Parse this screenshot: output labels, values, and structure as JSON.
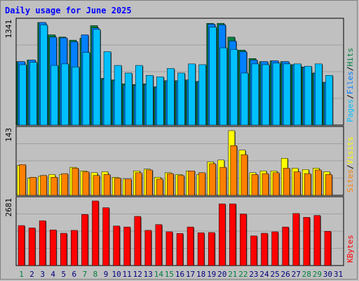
{
  "chart_data": {
    "type": "bar",
    "title": "Daily usage for June 2025",
    "colors": {
      "background": "#c0c0c0",
      "plot_background": "#c0c0c0",
      "pages": "#00c0ff",
      "files": "#0080ff",
      "hits": "#008040",
      "visits": "#ffff00",
      "sites": "#ff8000",
      "kbytes": "#ff0000",
      "weekend": "#008040",
      "weekday": "#000080"
    },
    "categories": [
      "1",
      "2",
      "3",
      "4",
      "5",
      "6",
      "7",
      "8",
      "9",
      "10",
      "11",
      "12",
      "13",
      "14",
      "15",
      "16",
      "17",
      "18",
      "19",
      "20",
      "21",
      "22",
      "23",
      "24",
      "25",
      "26",
      "27",
      "28",
      "29",
      "30",
      "31"
    ],
    "weekend_days": [
      "1",
      "7",
      "8",
      "14",
      "15",
      "21",
      "22",
      "28",
      "29"
    ],
    "panels": [
      {
        "id": "top",
        "max_label": "1341",
        "ymax": 1341,
        "legend": [
          {
            "text": "Hits",
            "color": "#008040"
          },
          {
            "text": "/",
            "color": "#000000"
          },
          {
            "text": "Files",
            "color": "#0080ff"
          },
          {
            "text": "/",
            "color": "#000000"
          },
          {
            "text": "Pages",
            "color": "#00c0ff"
          }
        ],
        "series": [
          {
            "name": "Hits",
            "color": "#008040",
            "values": [
              830,
              850,
              1341,
              1180,
              1150,
              1110,
              1135,
              1300,
              610,
              590,
              540,
              530,
              540,
              500,
              580,
              580,
              590,
              570,
              1330,
              1330,
              1150,
              980,
              870,
              830,
              840,
              830,
              790,
              760,
              680,
              560,
              0
            ]
          },
          {
            "name": "Files",
            "color": "#0080ff",
            "values": [
              830,
              850,
              1341,
              1150,
              1140,
              1090,
              1180,
              1270,
              600,
              580,
              520,
              520,
              530,
              500,
              580,
              580,
              590,
              570,
              1320,
              1310,
              1100,
              960,
              850,
              830,
              840,
              830,
              790,
              760,
              680,
              560,
              0
            ]
          },
          {
            "name": "Pages",
            "color": "#00c0ff",
            "values": [
              790,
              820,
              1310,
              780,
              800,
              760,
              950,
              1250,
              960,
              780,
              680,
              780,
              650,
              630,
              740,
              680,
              800,
              790,
              1280,
              1010,
              990,
              680,
              800,
              790,
              810,
              800,
              800,
              770,
              800,
              650,
              0
            ]
          }
        ]
      },
      {
        "id": "middle",
        "max_label": "143",
        "ymax": 143,
        "legend": [
          {
            "text": "Visits",
            "color": "#ffff00"
          },
          {
            "text": "/",
            "color": "#000000"
          },
          {
            "text": "Sites",
            "color": "#ff8000"
          }
        ],
        "series": [
          {
            "name": "Visits",
            "color": "#ffff00",
            "values": [
              66,
              38,
              42,
              46,
              46,
              62,
              54,
              50,
              52,
              40,
              36,
              54,
              58,
              40,
              50,
              46,
              54,
              46,
              74,
              78,
              143,
              100,
              50,
              54,
              54,
              82,
              60,
              57,
              60,
              52,
              0
            ]
          },
          {
            "name": "Sites",
            "color": "#ff8000",
            "values": [
              68,
              40,
              44,
              40,
              48,
              60,
              52,
              44,
              46,
              38,
              36,
              50,
              56,
              36,
              48,
              44,
              54,
              50,
              70,
              62,
              110,
              90,
              46,
              48,
              50,
              60,
              52,
              48,
              56,
              46,
              0
            ]
          }
        ]
      },
      {
        "id": "bottom",
        "max_label": "2681",
        "ymax": 2681,
        "legend": [
          {
            "text": "KBytes",
            "color": "#ff0000"
          }
        ],
        "series": [
          {
            "name": "KBytes",
            "color": "#ff0000",
            "values": [
              1660,
              1560,
              1860,
              1480,
              1340,
              1460,
              2120,
              2681,
              2400,
              1640,
              1600,
              2040,
              1460,
              1700,
              1400,
              1330,
              1600,
              1360,
              1370,
              2560,
              2560,
              2140,
              1230,
              1340,
              1400,
              1600,
              2160,
              2000,
              2080,
              1420,
              0
            ]
          }
        ]
      }
    ]
  }
}
